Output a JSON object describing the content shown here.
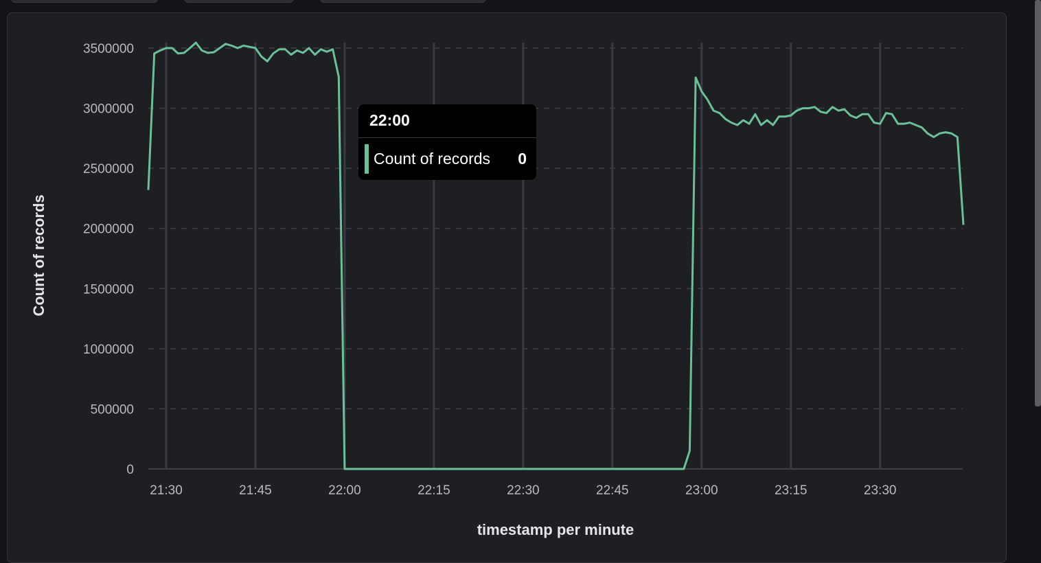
{
  "chart_data": {
    "type": "line",
    "xlabel": "timestamp per minute",
    "ylabel": "Count of records",
    "ylim": [
      0,
      3500000
    ],
    "xlim": [
      "21:27",
      "23:44"
    ],
    "y_ticks": [
      "0",
      "500000",
      "1000000",
      "1500000",
      "2000000",
      "2500000",
      "3000000",
      "3500000"
    ],
    "x_ticks": [
      "21:30",
      "21:45",
      "22:00",
      "22:15",
      "22:30",
      "22:45",
      "23:00",
      "23:15",
      "23:30"
    ],
    "grid": true,
    "line_color": "#6dbf9a",
    "series": [
      {
        "name": "Count of records",
        "x": [
          "21:27",
          "21:28",
          "21:29",
          "21:30",
          "21:31",
          "21:32",
          "21:33",
          "21:34",
          "21:35",
          "21:36",
          "21:37",
          "21:38",
          "21:39",
          "21:40",
          "21:41",
          "21:42",
          "21:43",
          "21:44",
          "21:45",
          "21:46",
          "21:47",
          "21:48",
          "21:49",
          "21:50",
          "21:51",
          "21:52",
          "21:53",
          "21:54",
          "21:55",
          "21:56",
          "21:57",
          "21:58",
          "21:59",
          "22:00",
          "22:01",
          "22:02",
          "22:03",
          "22:04",
          "22:05",
          "22:06",
          "22:07",
          "22:08",
          "22:09",
          "22:10",
          "22:11",
          "22:12",
          "22:13",
          "22:14",
          "22:15",
          "22:16",
          "22:17",
          "22:18",
          "22:19",
          "22:20",
          "22:21",
          "22:22",
          "22:23",
          "22:24",
          "22:25",
          "22:26",
          "22:27",
          "22:28",
          "22:29",
          "22:30",
          "22:31",
          "22:32",
          "22:33",
          "22:34",
          "22:35",
          "22:36",
          "22:37",
          "22:38",
          "22:39",
          "22:40",
          "22:41",
          "22:42",
          "22:43",
          "22:44",
          "22:45",
          "22:46",
          "22:47",
          "22:48",
          "22:49",
          "22:50",
          "22:51",
          "22:52",
          "22:53",
          "22:54",
          "22:55",
          "22:56",
          "22:57",
          "22:58",
          "22:59",
          "23:00",
          "23:01",
          "23:02",
          "23:03",
          "23:04",
          "23:05",
          "23:06",
          "23:07",
          "23:08",
          "23:09",
          "23:10",
          "23:11",
          "23:12",
          "23:13",
          "23:14",
          "23:15",
          "23:16",
          "23:17",
          "23:18",
          "23:19",
          "23:20",
          "23:21",
          "23:22",
          "23:23",
          "23:24",
          "23:25",
          "23:26",
          "23:27",
          "23:28",
          "23:29",
          "23:30",
          "23:31",
          "23:32",
          "23:33",
          "23:34",
          "23:35",
          "23:36",
          "23:37",
          "23:38",
          "23:39",
          "23:40",
          "23:41",
          "23:42",
          "23:43",
          "23:44"
        ],
        "values": [
          2320000,
          3455000,
          3480000,
          3500000,
          3500000,
          3455000,
          3460000,
          3500000,
          3545000,
          3480000,
          3460000,
          3465000,
          3500000,
          3535000,
          3520000,
          3500000,
          3520000,
          3510000,
          3500000,
          3430000,
          3390000,
          3455000,
          3490000,
          3490000,
          3445000,
          3480000,
          3460000,
          3500000,
          3445000,
          3490000,
          3470000,
          3490000,
          3260000,
          0,
          0,
          0,
          0,
          0,
          0,
          0,
          0,
          0,
          0,
          0,
          0,
          0,
          0,
          0,
          0,
          0,
          0,
          0,
          0,
          0,
          0,
          0,
          0,
          0,
          0,
          0,
          0,
          0,
          0,
          0,
          0,
          0,
          0,
          0,
          0,
          0,
          0,
          0,
          0,
          0,
          0,
          0,
          0,
          0,
          0,
          0,
          0,
          0,
          0,
          0,
          0,
          0,
          0,
          0,
          0,
          0,
          0,
          150000,
          3255000,
          3140000,
          3070000,
          2980000,
          2960000,
          2910000,
          2880000,
          2860000,
          2900000,
          2870000,
          2950000,
          2860000,
          2900000,
          2860000,
          2930000,
          2930000,
          2940000,
          2980000,
          3000000,
          3000000,
          3010000,
          2970000,
          2960000,
          3010000,
          2980000,
          2990000,
          2940000,
          2920000,
          2950000,
          2950000,
          2880000,
          2870000,
          2960000,
          2950000,
          2870000,
          2870000,
          2880000,
          2860000,
          2840000,
          2790000,
          2760000,
          2790000,
          2800000,
          2790000,
          2760000,
          2030000
        ]
      }
    ],
    "tooltip": {
      "title": "22:00",
      "label": "Count of records",
      "value": "0"
    }
  }
}
